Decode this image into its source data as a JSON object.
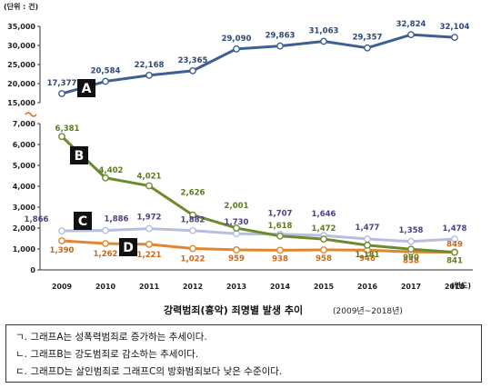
{
  "chart_data": {
    "type": "line",
    "unit_label": "(단위 : 건)",
    "xlabel_unit": "(연도)",
    "title": "강력범죄(흉악) 죄명별 발생 추이",
    "subtitle": "(2009년~2018년)",
    "x": [
      "2009",
      "2010",
      "2011",
      "2012",
      "2013",
      "2014",
      "2015",
      "2016",
      "2017",
      "2018"
    ],
    "axis_upper": {
      "ylim": [
        15000,
        35000
      ],
      "ticks": [
        "15,000",
        "20,000",
        "25,000",
        "30,000",
        "35,000"
      ]
    },
    "axis_lower": {
      "ylim": [
        0,
        7000
      ],
      "ticks": [
        "0",
        "1,000",
        "2,000",
        "3,000",
        "4,000",
        "5,000",
        "6,000",
        "7,000"
      ]
    },
    "series": [
      {
        "name": "A",
        "axis": "upper",
        "color": "#3d5f94",
        "values": [
          17377,
          20584,
          22168,
          23365,
          29090,
          29863,
          31063,
          29357,
          32824,
          32104
        ],
        "labels": [
          "17,377",
          "20,584",
          "22,168",
          "23,365",
          "29,090",
          "29,863",
          "31,063",
          "29,357",
          "32,824",
          "32,104"
        ]
      },
      {
        "name": "B",
        "axis": "lower",
        "color": "#6e8b2c",
        "values": [
          6381,
          4402,
          4021,
          2626,
          2001,
          1618,
          1472,
          1181,
          990,
          841
        ],
        "labels": [
          "6,381",
          "4,402",
          "4,021",
          "2,626",
          "2,001",
          "1,618",
          "1,472",
          "1,181",
          "990",
          "841"
        ]
      },
      {
        "name": "C",
        "axis": "lower",
        "color": "#b8bedf",
        "values": [
          1866,
          1886,
          1972,
          1882,
          1730,
          1707,
          1646,
          1477,
          1358,
          1478
        ],
        "labels": [
          "1,866",
          "1,886",
          "1,972",
          "1,882",
          "1,730",
          "1,707",
          "1,646",
          "1,477",
          "1,358",
          "1,478"
        ]
      },
      {
        "name": "D",
        "axis": "lower",
        "color": "#e2852f",
        "values": [
          1390,
          1262,
          1221,
          1022,
          959,
          938,
          958,
          948,
          858,
          849
        ],
        "labels": [
          "1,390",
          "1,262",
          "1,221",
          "1,022",
          "959",
          "938",
          "958",
          "948",
          "858",
          "849"
        ]
      }
    ],
    "grid": false,
    "colors": {
      "A_label": "#2b4a7a",
      "B_label": "#5e7a1f",
      "C_label": "#4a3f86",
      "D_label": "#c8661a",
      "axis_break": "#e26a1c"
    }
  },
  "notes": [
    "ㄱ. 그래프A는 성폭력범죄로 증가하는 추세이다.",
    "ㄴ. 그래프B는 강도범죄로 감소하는 추세이다.",
    "ㄷ. 그래프D는 살인범죄로 그래프C의 방화범죄보다 낮은 수준이다."
  ]
}
